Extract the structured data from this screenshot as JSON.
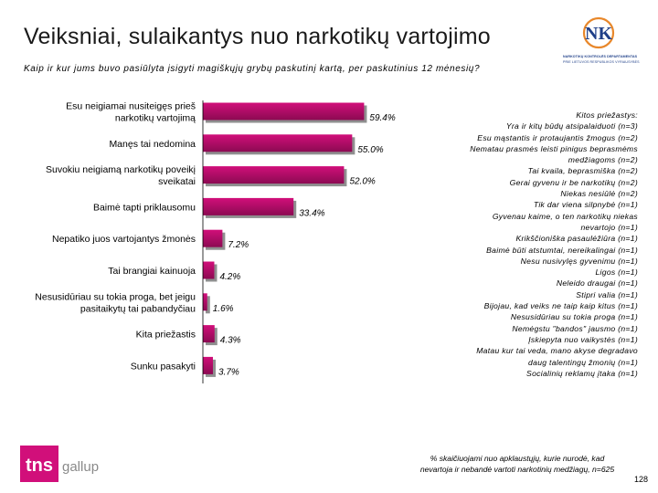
{
  "title": "Veiksniai, sulaikantys nuo narkotikų vartojimo",
  "subtitle": "Kaip ir kur jums buvo pasiūlyta įsigyti magiškųjų grybų paskutinį kartą, per paskutinius 12 mėnesių?",
  "logo": {
    "ndk_mark": "NK",
    "line1": "NARKOTIKŲ KONTROLĖS DEPARTAMENTAS",
    "line2": "PRIE LIETUVOS RESPUBLIKOS VYRIAUSYBĖS",
    "tns": "tns",
    "gallup": "gallup"
  },
  "colors": {
    "bar": "#d10f7a",
    "bar_dark": "#8c0a52",
    "bar_shadow": "#8f8f8f",
    "brand_blue": "#1f3f88"
  },
  "chart_data": {
    "type": "bar",
    "orientation": "horizontal",
    "categories": [
      [
        "Esu neigiamai nusiteigęs prieš",
        "narkotikų vartojimą"
      ],
      [
        "Manęs tai nedomina"
      ],
      [
        "Suvokiu neigiamą narkotikų poveikį",
        "sveikatai"
      ],
      [
        "Baimė tapti priklausomu"
      ],
      [
        "Nepatiko juos vartojantys žmonės"
      ],
      [
        "Tai brangiai kainuoja"
      ],
      [
        "Nesusidūriau su tokia proga, bet jeigu",
        "pasitaikytų tai pabandyčiau"
      ],
      [
        "Kita priežastis"
      ],
      [
        "Sunku pasakyti"
      ]
    ],
    "values": [
      59.4,
      55.0,
      52.0,
      33.4,
      7.2,
      4.2,
      1.6,
      4.3,
      3.7
    ],
    "value_labels": [
      "59.4%",
      "55.0%",
      "52.0%",
      "33.4%",
      "7.2%",
      "4.2%",
      "1.6%",
      "4.3%",
      "3.7%"
    ],
    "xlim": [
      0,
      100
    ],
    "grid": false,
    "legend": "none"
  },
  "other_reasons": {
    "heading": "Kitos priežastys:",
    "items": [
      "Yra ir kitų būdų atsipalaiduoti (n=3)",
      "Esu mąstantis ir protaujantis žmogus (n=2)",
      "Nematau prasmės leisti pinigus beprasmėms",
      "medžiagoms (n=2)",
      "Tai kvaila, beprasmiška (n=2)",
      "Gerai gyvenu ir be narkotikų (n=2)",
      "Niekas nesiūlė (n=2)",
      "Tik dar viena silpnybė (n=1)",
      "Gyvenau kaime, o ten narkotikų niekas",
      "nevartojo (n=1)",
      "Krikščioniška pasaulėžiūra (n=1)",
      "Baimė būti atstumtai, nereikalingai (n=1)",
      "Nesu nusivylęs gyvenimu (n=1)",
      "Ligos (n=1)",
      "Neleido draugai (n=1)",
      "Stipri valia (n=1)",
      "Bijojau, kad veiks ne taip kaip kitus (n=1)",
      "Nesusidūriau su tokia proga (n=1)",
      "Nemėgstu \"bandos\" jausmo (n=1)",
      "Įskiepyta nuo vaikystės (n=1)",
      "Matau kur tai veda, mano akyse degradavo",
      "daug talentingų žmonių (n=1)",
      "Socialinių reklamų įtaka (n=1)"
    ]
  },
  "footnote": {
    "line1": "% skaičiuojami nuo apklaustųjų, kurie nurodė, kad",
    "line2": "nevartoja ir nebandė vartoti narkotinių medžiagų, n=625"
  },
  "page_number": "128"
}
